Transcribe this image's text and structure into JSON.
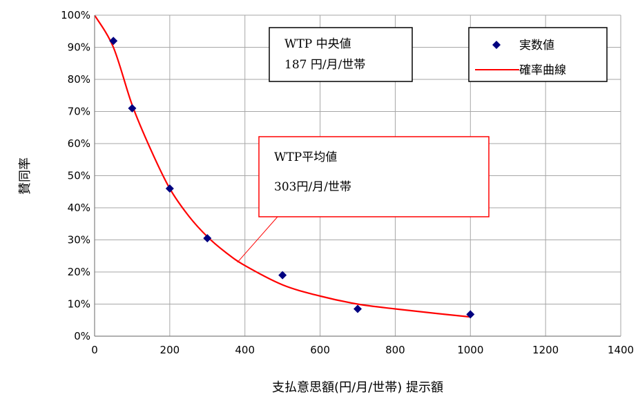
{
  "chart_data": {
    "type": "line",
    "xlabel": "支払意思額(円/月/世帯) 提示額",
    "ylabel": "賛同率",
    "xlim": [
      0,
      1400
    ],
    "ylim": [
      0,
      1
    ],
    "x_ticks": [
      "0",
      "200",
      "400",
      "600",
      "800",
      "1000",
      "1200",
      "1400"
    ],
    "y_ticks": [
      "0%",
      "10%",
      "20%",
      "30%",
      "40%",
      "50%",
      "60%",
      "70%",
      "80%",
      "90%",
      "100%"
    ],
    "grid": true,
    "legend_position": "top-right",
    "series": [
      {
        "name": "実数値",
        "kind": "scatter",
        "marker": "diamond",
        "color": "#000080",
        "x": [
          50,
          100,
          200,
          300,
          500,
          700,
          1000
        ],
        "y": [
          0.92,
          0.71,
          0.46,
          0.305,
          0.19,
          0.085,
          0.068
        ]
      },
      {
        "name": "確率曲線",
        "kind": "line",
        "color": "#ff0000",
        "x": [
          0,
          50,
          100,
          150,
          200,
          250,
          300,
          350,
          400,
          500,
          600,
          700,
          800,
          900,
          1000
        ],
        "y": [
          1.0,
          0.9,
          0.72,
          0.58,
          0.46,
          0.375,
          0.31,
          0.26,
          0.22,
          0.16,
          0.125,
          0.1,
          0.085,
          0.072,
          0.06
        ]
      }
    ],
    "annotations": {
      "median": {
        "line1": "WTP 中央値",
        "line2": "187 円/月/世帯"
      },
      "mean": {
        "line1": "WTP平均値",
        "line2": "303円/月/世帯",
        "pointer_x": 380,
        "pointer_y": 0.23,
        "border_color": "#ff0000"
      }
    }
  }
}
